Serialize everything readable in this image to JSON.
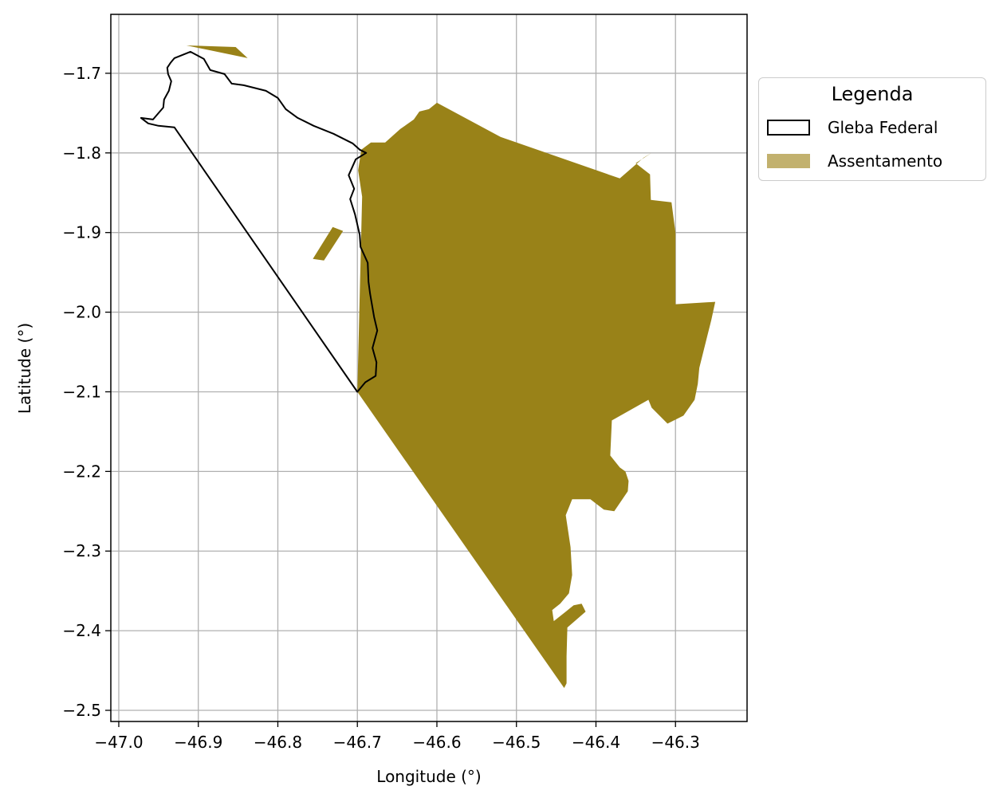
{
  "map": {
    "x_axis": {
      "label": "Longitude (°)",
      "range": [
        -47.01,
        -46.21
      ],
      "ticks": [
        "−47.0",
        "−46.9",
        "−46.8",
        "−46.7",
        "−46.6",
        "−46.5",
        "−46.4",
        "−46.3"
      ],
      "tick_values": [
        -47.0,
        -46.9,
        -46.8,
        -46.7,
        -46.6,
        -46.5,
        -46.4,
        -46.3
      ]
    },
    "y_axis": {
      "label": "Latitude (°)",
      "range": [
        -2.514,
        -1.626
      ],
      "ticks": [
        "−1.7",
        "−1.8",
        "−1.9",
        "−2.0",
        "−2.1",
        "−2.2",
        "−2.3",
        "−2.4",
        "−2.5"
      ],
      "tick_values": [
        -1.7,
        -1.8,
        -1.9,
        -2.0,
        -2.1,
        -2.2,
        -2.3,
        -2.4,
        -2.5
      ]
    },
    "grid": true,
    "colors": {
      "gleba_edge": "#000000",
      "assentamento_fill": "#998218",
      "assentamento_legend": "#c2b16e",
      "grid": "#b0b0b0"
    },
    "layers": {
      "gleba": [
        [
          -46.93,
          -1.681
        ],
        [
          -46.91,
          -1.673
        ],
        [
          -46.893,
          -1.682
        ],
        [
          -46.885,
          -1.696
        ],
        [
          -46.867,
          -1.701
        ],
        [
          -46.858,
          -1.713
        ],
        [
          -46.843,
          -1.715
        ],
        [
          -46.815,
          -1.722
        ],
        [
          -46.8,
          -1.731
        ],
        [
          -46.79,
          -1.745
        ],
        [
          -46.775,
          -1.756
        ],
        [
          -46.755,
          -1.766
        ],
        [
          -46.73,
          -1.776
        ],
        [
          -46.706,
          -1.788
        ],
        [
          -46.697,
          -1.796
        ],
        [
          -46.689,
          -1.8
        ],
        [
          -46.702,
          -1.808
        ],
        [
          -46.711,
          -1.828
        ],
        [
          -46.704,
          -1.845
        ],
        [
          -46.709,
          -1.858
        ],
        [
          -46.703,
          -1.877
        ],
        [
          -46.697,
          -1.903
        ],
        [
          -46.696,
          -1.918
        ],
        [
          -46.687,
          -1.938
        ],
        [
          -46.686,
          -1.962
        ],
        [
          -46.684,
          -1.977
        ],
        [
          -46.679,
          -2.006
        ],
        [
          -46.675,
          -2.023
        ],
        [
          -46.681,
          -2.045
        ],
        [
          -46.676,
          -2.063
        ],
        [
          -46.677,
          -2.08
        ],
        [
          -46.69,
          -2.088
        ],
        [
          -46.7,
          -2.1
        ],
        [
          -46.93,
          -1.768
        ],
        [
          -46.95,
          -1.766
        ],
        [
          -46.963,
          -1.763
        ],
        [
          -46.972,
          -1.756
        ],
        [
          -46.957,
          -1.758
        ],
        [
          -46.951,
          -1.751
        ],
        [
          -46.944,
          -1.743
        ],
        [
          -46.943,
          -1.733
        ],
        [
          -46.937,
          -1.722
        ],
        [
          -46.934,
          -1.71
        ],
        [
          -46.938,
          -1.701
        ],
        [
          -46.939,
          -1.693
        ],
        [
          -46.935,
          -1.687
        ],
        [
          -46.93,
          -1.681
        ]
      ],
      "assentamento": [
        [
          [
            -46.7,
            -2.1
          ],
          [
            -46.694,
            -1.855
          ],
          [
            -46.699,
            -1.822
          ],
          [
            -46.695,
            -1.796
          ],
          [
            -46.683,
            -1.787
          ],
          [
            -46.665,
            -1.787
          ],
          [
            -46.646,
            -1.77
          ],
          [
            -46.629,
            -1.758
          ],
          [
            -46.622,
            -1.748
          ],
          [
            -46.61,
            -1.745
          ],
          [
            -46.6,
            -1.737
          ],
          [
            -46.52,
            -1.78
          ],
          [
            -46.37,
            -1.832
          ],
          [
            -46.34,
            -1.806
          ],
          [
            -46.33,
            -1.8
          ],
          [
            -46.35,
            -1.813
          ],
          [
            -46.332,
            -1.827
          ],
          [
            -46.331,
            -1.859
          ],
          [
            -46.305,
            -1.862
          ],
          [
            -46.3,
            -1.9
          ],
          [
            -46.3,
            -1.99
          ],
          [
            -46.25,
            -1.987
          ],
          [
            -46.255,
            -2.01
          ],
          [
            -46.26,
            -2.03
          ],
          [
            -46.265,
            -2.05
          ],
          [
            -46.27,
            -2.07
          ],
          [
            -46.272,
            -2.09
          ],
          [
            -46.276,
            -2.11
          ],
          [
            -46.29,
            -2.13
          ],
          [
            -46.31,
            -2.14
          ],
          [
            -46.33,
            -2.12
          ],
          [
            -46.334,
            -2.11
          ],
          [
            -46.38,
            -2.136
          ],
          [
            -46.382,
            -2.18
          ],
          [
            -46.37,
            -2.195
          ],
          [
            -46.363,
            -2.2
          ],
          [
            -46.359,
            -2.212
          ],
          [
            -46.36,
            -2.225
          ],
          [
            -46.377,
            -2.25
          ],
          [
            -46.39,
            -2.248
          ],
          [
            -46.407,
            -2.235
          ],
          [
            -46.43,
            -2.235
          ],
          [
            -46.438,
            -2.255
          ],
          [
            -46.432,
            -2.295
          ],
          [
            -46.43,
            -2.33
          ],
          [
            -46.434,
            -2.353
          ],
          [
            -46.445,
            -2.366
          ],
          [
            -46.455,
            -2.374
          ],
          [
            -46.453,
            -2.388
          ],
          [
            -46.438,
            -2.376
          ],
          [
            -46.428,
            -2.368
          ],
          [
            -46.418,
            -2.366
          ],
          [
            -46.413,
            -2.376
          ],
          [
            -46.436,
            -2.396
          ],
          [
            -46.437,
            -2.432
          ],
          [
            -46.437,
            -2.466
          ],
          [
            -46.44,
            -2.472
          ],
          [
            -46.7,
            -2.1
          ]
        ],
        [
          [
            -46.915,
            -1.665
          ],
          [
            -46.838,
            -1.681
          ],
          [
            -46.853,
            -1.667
          ],
          [
            -46.915,
            -1.665
          ]
        ],
        [
          [
            -46.742,
            -1.935
          ],
          [
            -46.718,
            -1.898
          ],
          [
            -46.731,
            -1.893
          ],
          [
            -46.756,
            -1.933
          ],
          [
            -46.742,
            -1.935
          ]
        ]
      ]
    }
  },
  "legend": {
    "title": "Legenda",
    "items": [
      {
        "label": "Gleba Federal",
        "style": "outline"
      },
      {
        "label": "Assentamento",
        "style": "fill"
      }
    ]
  }
}
